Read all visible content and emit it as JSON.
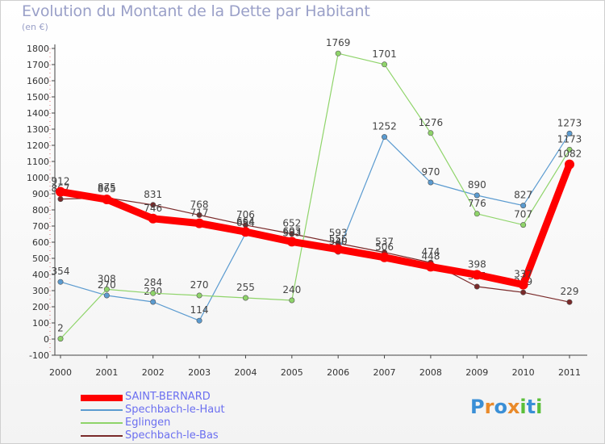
{
  "title": "Evolution du Montant de la Dette par Habitant",
  "unit": "(en €)",
  "brand": {
    "letters": [
      "P",
      "r",
      "o",
      "x",
      "i",
      "t",
      "i"
    ],
    "colors": [
      "#3a8fd6",
      "#e98a2a",
      "#3a8fd6",
      "#e98a2a",
      "#5bbf3a",
      "#3a8fd6",
      "#5bbf3a"
    ]
  },
  "chart_data": {
    "type": "line",
    "x": [
      "2000",
      "2001",
      "2002",
      "2003",
      "2004",
      "2005",
      "2006",
      "2007",
      "2008",
      "2009",
      "2010",
      "2011"
    ],
    "ylim": [
      -100,
      1800
    ],
    "yticks": [
      -100,
      0,
      100,
      200,
      300,
      400,
      500,
      600,
      700,
      800,
      900,
      1000,
      1100,
      1200,
      1300,
      1400,
      1500,
      1600,
      1700,
      1800
    ],
    "grid": false,
    "legend": "bottom-left",
    "series": [
      {
        "name": "Spechbach-le-Bas",
        "color": "#7a2a2a",
        "values": [
          867,
          875,
          831,
          768,
          706,
          652,
          593,
          537,
          474,
          325,
          289,
          229
        ],
        "labels": [
          "867",
          "875",
          "831",
          "768",
          "706",
          "652",
          "593",
          "537",
          "474",
          "325",
          "289",
          "229"
        ]
      },
      {
        "name": "Spechbach-le-Haut",
        "color": "#5b9bd0",
        "values": [
          354,
          270,
          230,
          114,
          654,
          593,
          540,
          1252,
          970,
          890,
          827,
          1273
        ],
        "labels": [
          "354",
          "270",
          "230",
          "114",
          "654",
          "593",
          "540",
          "1252",
          "970",
          "890",
          "827",
          "1273"
        ]
      },
      {
        "name": "Eglingen",
        "color": "#8fd46a",
        "values": [
          2,
          308,
          284,
          270,
          255,
          240,
          1769,
          1701,
          1276,
          776,
          707,
          1173
        ],
        "labels": [
          "2",
          "308",
          "284",
          "270",
          "255",
          "240",
          "1769",
          "1701",
          "1276",
          "776",
          "707",
          "1173"
        ]
      },
      {
        "name": "SAINT-BERNARD",
        "color": "#ff0000",
        "values": [
          912,
          865,
          746,
          717,
          664,
          603,
          556,
          506,
          448,
          398,
          337,
          1082
        ],
        "labels": [
          "912",
          "865",
          "746",
          "717",
          "664",
          "603",
          "556",
          "506",
          "448",
          "398",
          "337",
          "1082"
        ]
      }
    ],
    "legend_order": [
      "SAINT-BERNARD",
      "Spechbach-le-Haut",
      "Eglingen",
      "Spechbach-le-Bas"
    ]
  }
}
